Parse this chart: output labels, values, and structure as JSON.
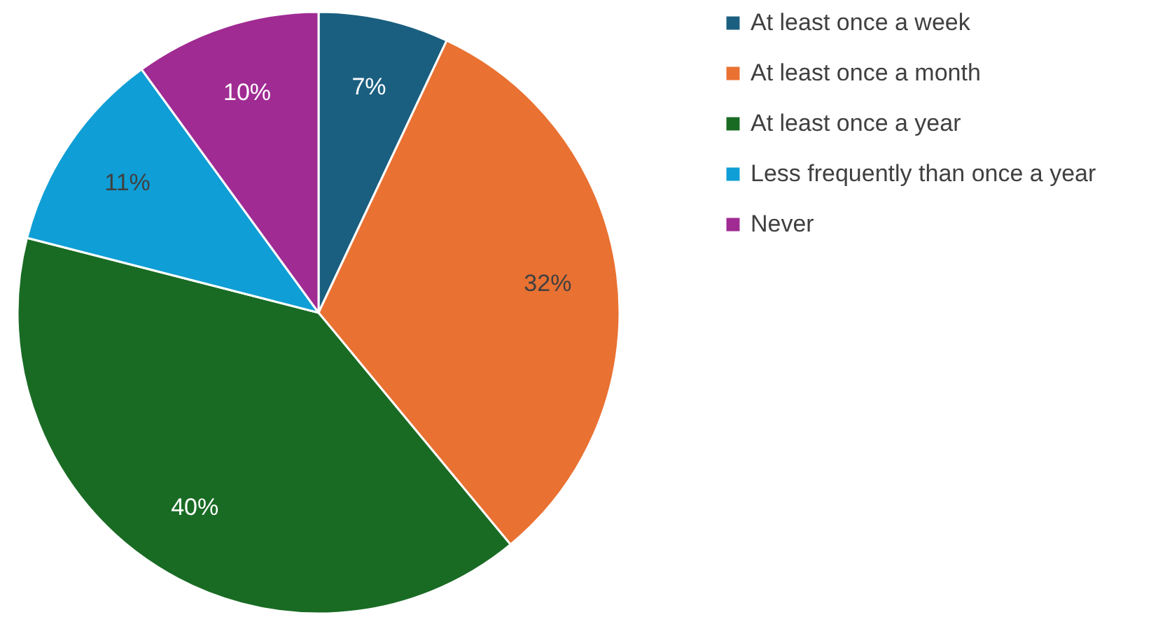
{
  "chart_data": {
    "type": "pie",
    "categories": [
      "At least once a week",
      "At least once a month",
      "At least once a year",
      "Less frequently than once a year",
      "Never"
    ],
    "values": [
      7,
      32,
      40,
      11,
      10
    ],
    "colors": [
      "#1a5f80",
      "#e97132",
      "#196b24",
      "#0f9ed5",
      "#a02b93"
    ],
    "value_labels": [
      "7%",
      "32%",
      "40%",
      "11%",
      "10%"
    ],
    "legend": "right"
  }
}
